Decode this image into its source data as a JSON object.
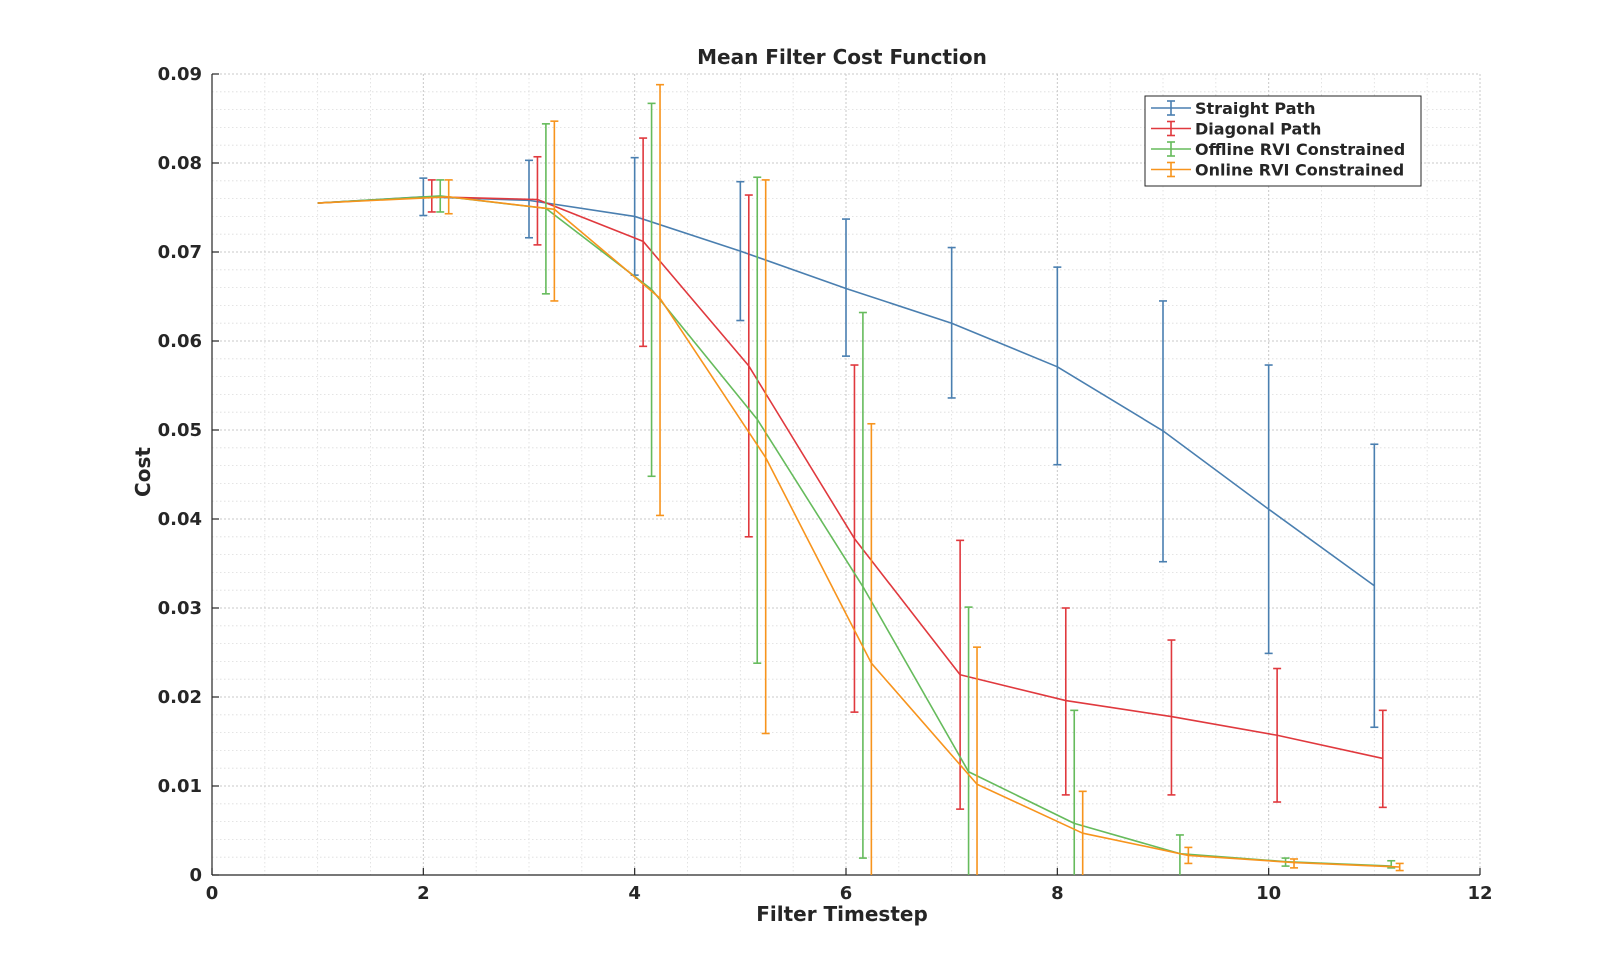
{
  "chart_data": {
    "type": "line",
    "title": "Mean Filter Cost Function",
    "xlabel": "Filter Timestep",
    "ylabel": "Cost",
    "xlim": [
      0,
      12
    ],
    "ylim": [
      0,
      0.09
    ],
    "xticks": [
      "0",
      "2",
      "4",
      "6",
      "8",
      "10",
      "12"
    ],
    "yticks": [
      "0",
      "0.01",
      "0.02",
      "0.03",
      "0.04",
      "0.05",
      "0.06",
      "0.07",
      "0.08",
      "0.09"
    ],
    "grid": true,
    "minor_grid": true,
    "legend_position": "top-right",
    "x": [
      1,
      2,
      3,
      4,
      5,
      6,
      7,
      8,
      9,
      10,
      11
    ],
    "series": [
      {
        "name": "Straight Path",
        "color": "#4a7fb0",
        "x_offset": 0,
        "values": [
          0.0755,
          0.0762,
          0.0758,
          0.074,
          0.0701,
          0.0659,
          0.062,
          0.0571,
          0.0499,
          0.0411,
          0.0325
        ],
        "error_low": [
          null,
          0.0741,
          0.0716,
          0.0674,
          0.0623,
          0.0583,
          0.0536,
          0.0461,
          0.0352,
          0.0249,
          0.0166
        ],
        "error_high": [
          null,
          0.0783,
          0.0803,
          0.0806,
          0.0779,
          0.0737,
          0.0705,
          0.0683,
          0.0645,
          0.0573,
          0.0484
        ]
      },
      {
        "name": "Diagonal Path",
        "color": "#e0393e",
        "x_offset": 0.08,
        "values": [
          0.0755,
          0.0762,
          0.0759,
          0.0712,
          0.0572,
          0.0378,
          0.0225,
          0.0196,
          0.0178,
          0.0157,
          0.0131
        ],
        "error_low": [
          null,
          0.0745,
          0.0708,
          0.0594,
          0.038,
          0.0183,
          0.0074,
          0.009,
          0.009,
          0.0082,
          0.0076
        ],
        "error_high": [
          null,
          0.0781,
          0.0807,
          0.0828,
          0.0764,
          0.0573,
          0.0376,
          0.03,
          0.0264,
          0.0232,
          0.0185
        ]
      },
      {
        "name": "Offline RVI Constrained",
        "color": "#66bb5c",
        "x_offset": 0.16,
        "values": [
          0.0755,
          0.0763,
          0.0749,
          0.0658,
          0.0512,
          0.0324,
          0.0116,
          0.0058,
          0.0024,
          0.0015,
          0.001
        ],
        "error_low": [
          null,
          0.0745,
          0.0653,
          0.0448,
          0.0238,
          0.0019,
          0.0,
          0.0,
          0.0,
          0.001,
          0.0008
        ],
        "error_high": [
          null,
          0.0781,
          0.0844,
          0.0867,
          0.0784,
          0.0632,
          0.0301,
          0.0185,
          0.0045,
          0.0019,
          0.0016
        ]
      },
      {
        "name": "Online RVI Constrained",
        "color": "#f7941d",
        "x_offset": 0.24,
        "values": [
          0.0755,
          0.0762,
          0.0748,
          0.0648,
          0.0469,
          0.0238,
          0.0102,
          0.0047,
          0.0022,
          0.0014,
          0.0009
        ],
        "error_low": [
          null,
          0.0743,
          0.0645,
          0.0404,
          0.0159,
          0.0,
          0.0,
          0.0,
          0.0013,
          0.0008,
          0.0005
        ],
        "error_high": [
          null,
          0.0781,
          0.0847,
          0.0888,
          0.0781,
          0.0507,
          0.0256,
          0.0094,
          0.0031,
          0.0018,
          0.0013
        ]
      }
    ]
  }
}
